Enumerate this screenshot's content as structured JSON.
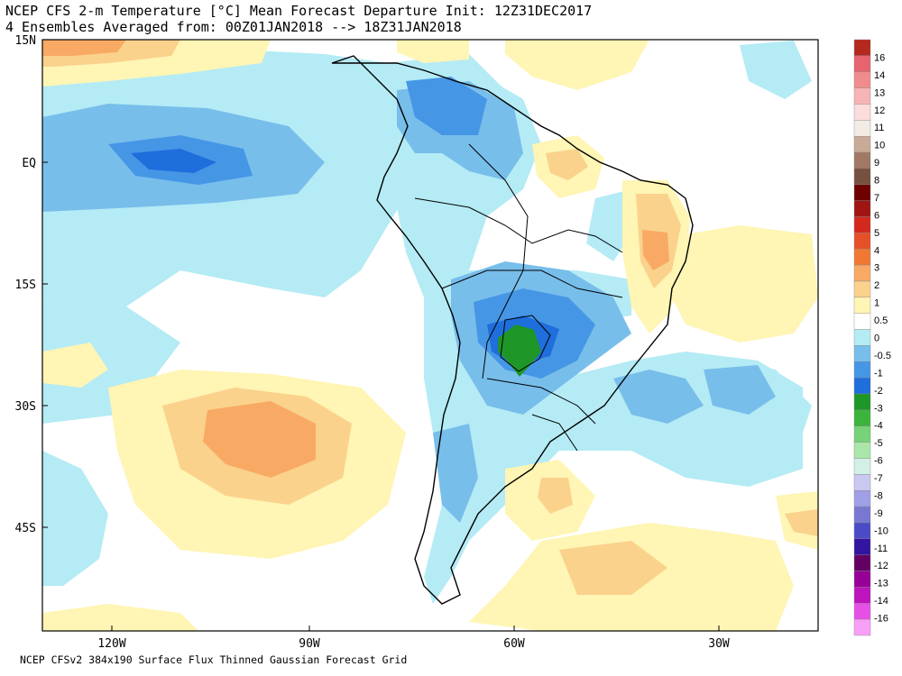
{
  "header": {
    "line1": "NCEP CFS 2-m Temperature [°C] Mean Forecast Departure Init: 12Z31DEC2017",
    "line2": "4 Ensembles Averaged from: 00Z01JAN2018 --> 18Z31JAN2018"
  },
  "footer": {
    "text": "NCEP CFSv2 384x190 Surface Flux Thinned Gaussian Forecast Grid"
  },
  "axes": {
    "lat_labels": [
      "15N",
      "EQ",
      "15S",
      "30S",
      "45S"
    ],
    "lon_labels": [
      "120W",
      "90W",
      "60W",
      "30W"
    ]
  },
  "colorbar": {
    "labels": [
      "16",
      "14",
      "13",
      "12",
      "11",
      "10",
      "9",
      "8",
      "7",
      "6",
      "5",
      "4",
      "3",
      "2",
      "1",
      "0.5",
      "0",
      "-0.5",
      "-1",
      "-2",
      "-3",
      "-4",
      "-5",
      "-6",
      "-7",
      "-8",
      "-9",
      "-10",
      "-11",
      "-12",
      "-13",
      "-14",
      "-16"
    ],
    "colors": [
      "#b4281e",
      "#e6646e",
      "#f08c8c",
      "#f8b4b4",
      "#fcdcdc",
      "#f4ece4",
      "#c8aa96",
      "#a07864",
      "#785040",
      "#6e0000",
      "#a01414",
      "#d2281e",
      "#e65028",
      "#f07832",
      "#f8aa64",
      "#fad28c",
      "#fff5b4",
      "#ffffff",
      "#b4ebf5",
      "#78beeb",
      "#4696e6",
      "#1e6edc",
      "#1e9628",
      "#3cb43c",
      "#78d278",
      "#aae6aa",
      "#d2f0e6",
      "#c8c8f0",
      "#a0a0e6",
      "#7878d2",
      "#4b4bc8",
      "#3214a0",
      "#640064",
      "#960096",
      "#be14be",
      "#e650e6",
      "#f8a0f8"
    ]
  },
  "colors": {
    "ocean_bg": "#ffffff",
    "coast": "#000000"
  }
}
